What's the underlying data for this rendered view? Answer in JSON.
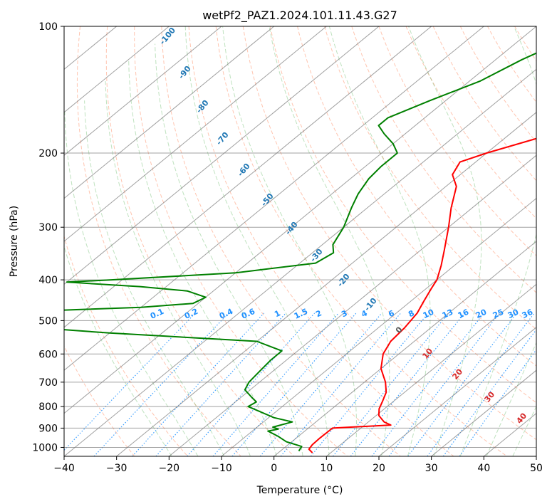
{
  "chart_data": {
    "type": "line",
    "title": "wetPf2_PAZ1.2024.101.11.43.G27",
    "xlabel": "Temperature (°C)",
    "ylabel": "Pressure (hPa)",
    "xlim": [
      -40,
      50
    ],
    "ylim": [
      1050,
      100
    ],
    "y_scale": "log",
    "grid": true,
    "x_ticks": [
      -40,
      -30,
      -20,
      -10,
      0,
      10,
      20,
      30,
      40,
      50
    ],
    "y_ticks": [
      100,
      200,
      300,
      400,
      500,
      600,
      700,
      800,
      900,
      1000
    ],
    "series": [
      {
        "kind": "temperature",
        "color": "#ff0000",
        "points": [
          [
            1030,
            6.5
          ],
          [
            1010,
            5.0
          ],
          [
            985,
            4.6
          ],
          [
            950,
            4.5
          ],
          [
            900,
            4.6
          ],
          [
            885,
            15.0
          ],
          [
            870,
            13.0
          ],
          [
            840,
            10.5
          ],
          [
            810,
            9.0
          ],
          [
            780,
            8.0
          ],
          [
            740,
            6.5
          ],
          [
            700,
            4.0
          ],
          [
            650,
            0.0
          ],
          [
            600,
            -3.0
          ],
          [
            560,
            -4.5
          ],
          [
            520,
            -5.0
          ],
          [
            480,
            -6.0
          ],
          [
            450,
            -7.5
          ],
          [
            420,
            -9.0
          ],
          [
            400,
            -10.0
          ],
          [
            370,
            -12.5
          ],
          [
            340,
            -15.5
          ],
          [
            300,
            -20.0
          ],
          [
            270,
            -24.0
          ],
          [
            240,
            -28.0
          ],
          [
            225,
            -31.5
          ],
          [
            210,
            -33.0
          ],
          [
            200,
            -30.0
          ],
          [
            185,
            -24.0
          ],
          [
            170,
            -18.0
          ],
          [
            150,
            -12.0
          ],
          [
            130,
            -7.0
          ],
          [
            115,
            -3.0
          ],
          [
            100,
            1.0
          ]
        ]
      },
      {
        "kind": "dewpoint",
        "color": "#008000",
        "points": [
          [
            1020,
            3.5
          ],
          [
            995,
            3.0
          ],
          [
            970,
            -1.0
          ],
          [
            940,
            -4.0
          ],
          [
            915,
            -7.0
          ],
          [
            905,
            -5.5
          ],
          [
            895,
            -7.0
          ],
          [
            870,
            -4.5
          ],
          [
            850,
            -9.0
          ],
          [
            800,
            -16.5
          ],
          [
            780,
            -16.0
          ],
          [
            760,
            -18.0
          ],
          [
            730,
            -21.0
          ],
          [
            700,
            -22.0
          ],
          [
            660,
            -22.5
          ],
          [
            620,
            -23.0
          ],
          [
            590,
            -23.0
          ],
          [
            560,
            -30.0
          ],
          [
            535,
            -60.0
          ],
          [
            515,
            -80.0
          ],
          [
            475,
            -80.0
          ],
          [
            465,
            -60.0
          ],
          [
            455,
            -51.0
          ],
          [
            440,
            -50.0
          ],
          [
            425,
            -55.0
          ],
          [
            415,
            -65.0
          ],
          [
            405,
            -80.0
          ],
          [
            400,
            -72.0
          ],
          [
            385,
            -50.0
          ],
          [
            365,
            -37.0
          ],
          [
            345,
            -36.0
          ],
          [
            330,
            -38.0
          ],
          [
            300,
            -40.0
          ],
          [
            270,
            -43.0
          ],
          [
            250,
            -45.0
          ],
          [
            230,
            -46.5
          ],
          [
            215,
            -47.0
          ],
          [
            200,
            -47.0
          ],
          [
            190,
            -50.0
          ],
          [
            180,
            -54.0
          ],
          [
            172,
            -57.0
          ],
          [
            165,
            -57.0
          ],
          [
            150,
            -53.0
          ],
          [
            135,
            -48.0
          ],
          [
            120,
            -45.0
          ],
          [
            110,
            -42.0
          ],
          [
            100,
            -38.0
          ]
        ]
      }
    ],
    "dry_adiabat_labels": [
      "-100",
      "-90",
      "-80",
      "-70",
      "-60",
      "-50",
      "-40",
      "-30",
      "-20",
      "-10"
    ],
    "moist_adiabat_labels": [
      "0",
      "10",
      "20",
      "30",
      "40"
    ],
    "mixing_ratio_labels": [
      "0.1",
      "0.2",
      "0.4",
      "0.6",
      "1",
      "1.5",
      "2",
      "3",
      "4",
      "6",
      "8",
      "10",
      "13",
      "16",
      "20",
      "25",
      "30",
      "36"
    ]
  }
}
